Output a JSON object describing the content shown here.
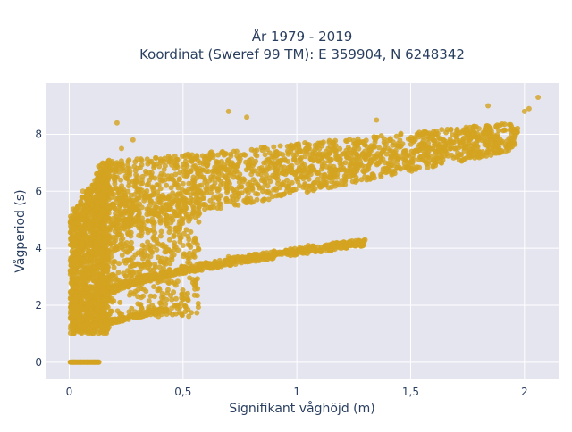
{
  "chart_data": {
    "type": "scatter",
    "title_line1": "År 1979 - 2019",
    "title_line2": "Koordinat (Sweref 99 TM): E 359904, N 6248342",
    "xlabel": "Signifikant våghöjd (m)",
    "ylabel": "Vågperiod (s)",
    "xlim": [
      -0.1,
      2.15
    ],
    "ylim": [
      -0.6,
      9.8
    ],
    "x_ticks": [
      0,
      0.5,
      1,
      1.5,
      2
    ],
    "x_tick_labels": [
      "0",
      "0,5",
      "1",
      "1,5",
      "2"
    ],
    "y_ticks": [
      0,
      2,
      4,
      6,
      8
    ],
    "y_tick_labels": [
      "0",
      "2",
      "4",
      "6",
      "8"
    ],
    "grid": true,
    "marker_color": "#d4a320",
    "background_color": "#e5e5f0",
    "points_sample": [
      [
        0.02,
        0.0
      ],
      [
        0.05,
        0.0
      ],
      [
        0.08,
        0.0
      ],
      [
        0.11,
        0.0
      ],
      [
        0.13,
        0.0
      ],
      [
        0.02,
        1.5
      ],
      [
        0.03,
        2.6
      ],
      [
        0.04,
        3.8
      ],
      [
        0.05,
        5.2
      ],
      [
        0.06,
        6.0
      ],
      [
        0.1,
        1.3
      ],
      [
        0.15,
        2.5
      ],
      [
        0.2,
        4.0
      ],
      [
        0.25,
        5.5
      ],
      [
        0.3,
        6.8
      ],
      [
        0.23,
        7.5
      ],
      [
        0.28,
        7.8
      ],
      [
        0.3,
        6.5
      ],
      [
        0.35,
        5.2
      ],
      [
        0.4,
        6.4
      ],
      [
        0.45,
        1.9
      ],
      [
        0.5,
        4.1
      ],
      [
        0.6,
        3.5
      ],
      [
        0.7,
        3.7
      ],
      [
        0.9,
        3.9
      ],
      [
        1.05,
        4.1
      ],
      [
        1.3,
        4.3
      ],
      [
        0.6,
        6.1
      ],
      [
        0.8,
        6.6
      ],
      [
        1.0,
        7.0
      ],
      [
        1.2,
        7.3
      ],
      [
        1.4,
        7.5
      ],
      [
        1.6,
        7.8
      ],
      [
        1.8,
        8.2
      ],
      [
        2.0,
        8.8
      ],
      [
        0.21,
        8.4
      ],
      [
        0.7,
        8.8
      ],
      [
        0.78,
        8.6
      ],
      [
        1.35,
        8.5
      ],
      [
        1.84,
        9.0
      ],
      [
        2.06,
        9.3
      ],
      [
        2.02,
        8.9
      ]
    ]
  }
}
